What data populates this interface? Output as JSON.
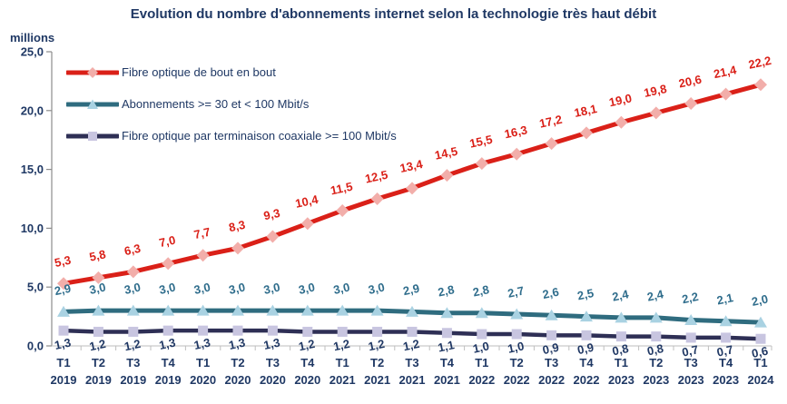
{
  "title": "Evolution du nombre d'abonnements internet selon la technologie très haut débit",
  "y_axis": {
    "unit_label": "millions"
  },
  "chart_data": {
    "type": "line",
    "title": "Evolution du nombre d'abonnements internet selon la technologie très haut débit",
    "xlabel": "",
    "ylabel": "millions",
    "ylim": [
      0,
      25
    ],
    "grid": false,
    "legend_position": "top-left",
    "y_ticks": [
      "0,0",
      "5,0",
      "10,0",
      "15,0",
      "20,0",
      "25,0"
    ],
    "categories": [
      "T1 2019",
      "T2 2019",
      "T3 2019",
      "T4 2019",
      "T1 2020",
      "T2 2020",
      "T3 2020",
      "T4 2020",
      "T1 2021",
      "T2 2021",
      "T3 2021",
      "T4 2021",
      "T1 2022",
      "T2 2022",
      "T3 2022",
      "T4 2022",
      "T1 2023",
      "T2 2023",
      "T3 2023",
      "T4 2023",
      "T1 2024"
    ],
    "series": [
      {
        "name": "Fibre optique de bout en bout",
        "color": "#da2018",
        "marker": "diamond",
        "marker_fill": "#f2aeaa",
        "label_color": "#da2018",
        "labels_below": false,
        "values": [
          5.3,
          5.8,
          6.3,
          7.0,
          7.7,
          8.3,
          9.3,
          10.4,
          11.5,
          12.5,
          13.4,
          14.5,
          15.5,
          16.3,
          17.2,
          18.1,
          19.0,
          19.8,
          20.6,
          21.4,
          22.2
        ]
      },
      {
        "name": "Abonnements >= 30 et < 100 Mbit/s",
        "color": "#2f6c7f",
        "marker": "triangle",
        "marker_fill": "#a9d2e2",
        "label_color": "#2f6d8c",
        "labels_below": false,
        "values": [
          2.9,
          3.0,
          3.0,
          3.0,
          3.0,
          3.0,
          3.0,
          3.0,
          3.0,
          3.0,
          2.9,
          2.8,
          2.8,
          2.7,
          2.6,
          2.5,
          2.4,
          2.4,
          2.2,
          2.1,
          2.0
        ]
      },
      {
        "name": "Fibre optique par terminaison coaxiale >= 100 Mbit/s",
        "color": "#2e2f55",
        "marker": "square",
        "marker_fill": "#c8c5e0",
        "label_color": "#203864",
        "labels_below": true,
        "values": [
          1.3,
          1.2,
          1.2,
          1.3,
          1.3,
          1.3,
          1.3,
          1.2,
          1.2,
          1.2,
          1.2,
          1.1,
          1.0,
          1.0,
          0.9,
          0.9,
          0.8,
          0.8,
          0.7,
          0.7,
          0.6
        ]
      }
    ]
  }
}
